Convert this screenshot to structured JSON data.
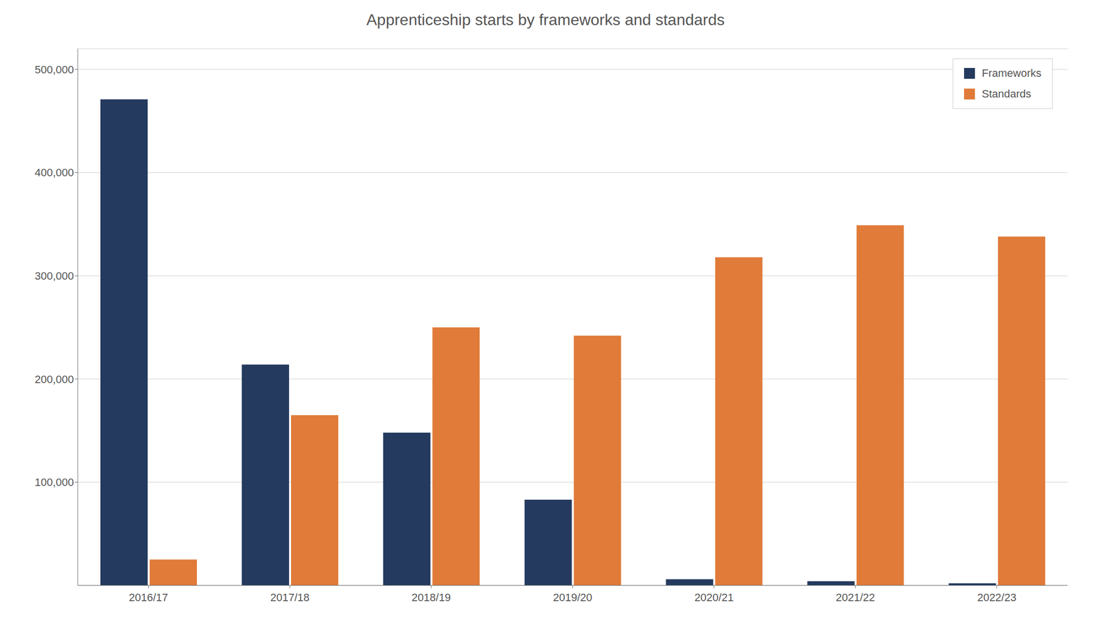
{
  "chart_data": {
    "type": "bar",
    "title": "Apprenticeship starts by frameworks and standards",
    "categories": [
      "2016/17",
      "2017/18",
      "2018/19",
      "2019/20",
      "2020/21",
      "2021/22",
      "2022/23"
    ],
    "series": [
      {
        "name": "Frameworks",
        "color": "#243a5e",
        "values": [
          471000,
          214000,
          148000,
          83000,
          6000,
          4000,
          2000
        ]
      },
      {
        "name": "Standards",
        "color": "#e07b39",
        "values": [
          25000,
          165000,
          250000,
          242000,
          318000,
          349000,
          338000
        ]
      }
    ],
    "ylim": [
      0,
      520000
    ],
    "yticks": [
      {
        "value": 100000,
        "label": "100,000"
      },
      {
        "value": 200000,
        "label": "200,000"
      },
      {
        "value": 300000,
        "label": "300,000"
      },
      {
        "value": 400000,
        "label": "400,000"
      },
      {
        "value": 500000,
        "label": "500,000"
      }
    ],
    "grid": true,
    "legend": "upper right"
  }
}
